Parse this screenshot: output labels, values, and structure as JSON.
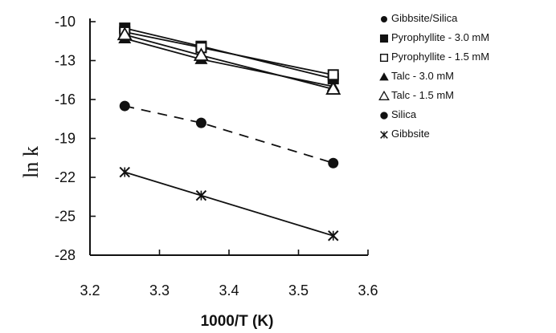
{
  "chart_data": {
    "type": "line",
    "title": "",
    "xlabel": "1000/T (K)",
    "ylabel": "ln k",
    "xlim": [
      3.2,
      3.6
    ],
    "ylim": [
      -28,
      -10
    ],
    "x_ticks": [
      "3.2",
      "3.3",
      "3.4",
      "3.5",
      "3.6"
    ],
    "y_ticks": [
      "-10",
      "-13",
      "-16",
      "-19",
      "-22",
      "-25",
      "-28"
    ],
    "grid": false,
    "legend_position": "right",
    "legend_entries": [
      {
        "label": "Gibbsite/Silica",
        "marker": "filled-circle-small",
        "series": null
      },
      {
        "label": "Pyrophyllite - 3.0 mM",
        "marker": "filled-square",
        "series": 0
      },
      {
        "label": "Pyrophyllite - 1.5 mM",
        "marker": "open-square",
        "series": 1
      },
      {
        "label": "Talc - 3.0 mM",
        "marker": "filled-triangle",
        "series": 2
      },
      {
        "label": "Talc - 1.5 mM",
        "marker": "open-triangle",
        "series": 3
      },
      {
        "label": "Silica",
        "marker": "filled-circle",
        "series": 4
      },
      {
        "label": "Gibbsite",
        "marker": "asterisk",
        "series": 5
      }
    ],
    "series": [
      {
        "name": "Pyrophyllite - 3.0 mM",
        "marker": "filled-square",
        "line": "solid",
        "x": [
          3.25,
          3.36,
          3.55
        ],
        "y": [
          -10.5,
          -11.9,
          -14.4
        ]
      },
      {
        "name": "Pyrophyllite - 1.5 mM",
        "marker": "open-square",
        "line": "solid",
        "x": [
          3.25,
          3.36,
          3.55
        ],
        "y": [
          -10.8,
          -12.0,
          -14.1
        ]
      },
      {
        "name": "Talc - 3.0 mM",
        "marker": "filled-triangle",
        "line": "solid",
        "x": [
          3.25,
          3.36,
          3.55
        ],
        "y": [
          -11.3,
          -12.9,
          -15.0
        ]
      },
      {
        "name": "Talc - 1.5 mM",
        "marker": "open-triangle",
        "line": "solid",
        "x": [
          3.25,
          3.36,
          3.55
        ],
        "y": [
          -11.0,
          -12.6,
          -15.2
        ]
      },
      {
        "name": "Silica",
        "marker": "filled-circle",
        "line": "dashed",
        "x": [
          3.25,
          3.36,
          3.55
        ],
        "y": [
          -16.5,
          -17.8,
          -20.9
        ]
      },
      {
        "name": "Gibbsite",
        "marker": "asterisk",
        "line": "solid",
        "x": [
          3.25,
          3.36,
          3.55
        ],
        "y": [
          -21.6,
          -23.4,
          -26.5
        ]
      }
    ]
  }
}
